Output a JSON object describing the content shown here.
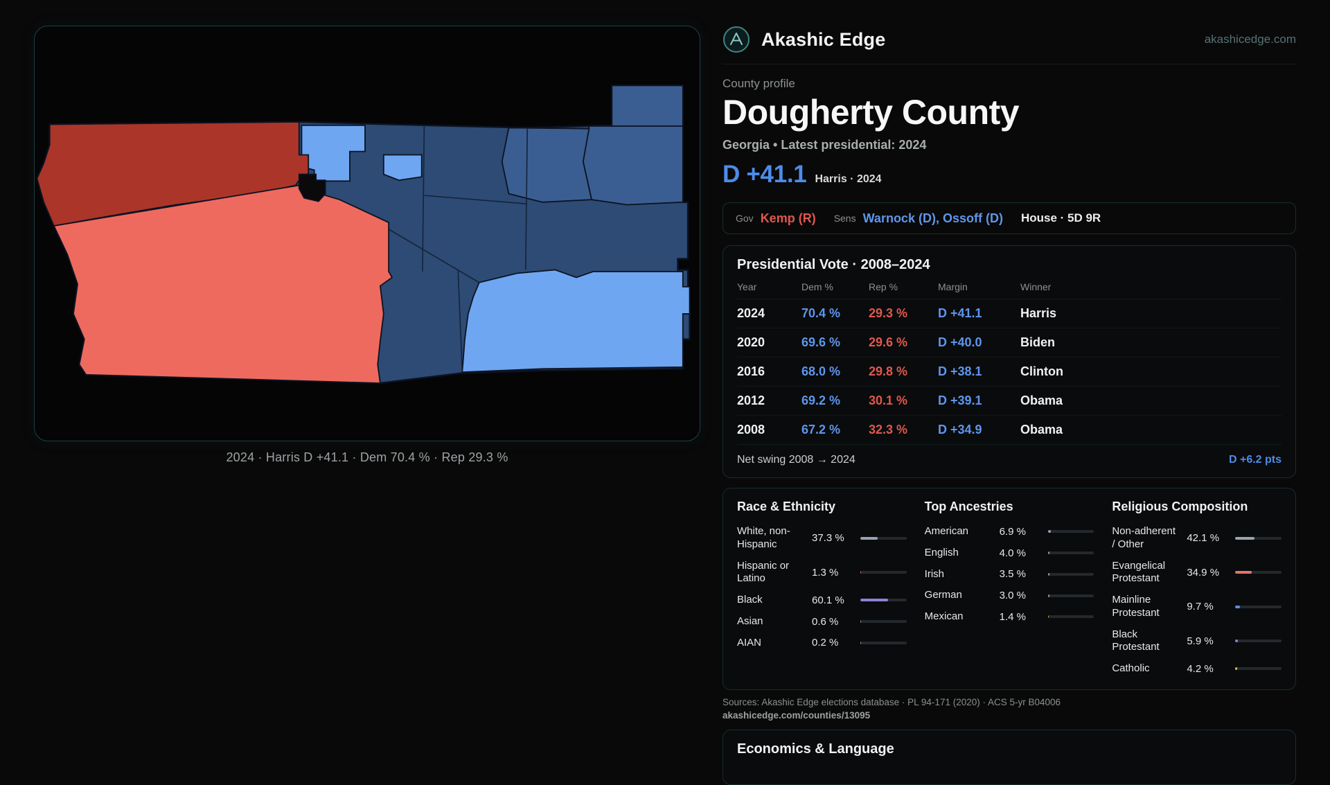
{
  "brand": {
    "name": "Akashic Edge",
    "domain": "akashicedge.com"
  },
  "colors": {
    "accent_dem": "#4d8ce9",
    "accent_rep": "#e2564d",
    "panel_border": "#1e4141",
    "text_muted": "#8d9292"
  },
  "map": {
    "caption": "2024 · Harris D +41.1 · Dem 70.4 % · Rep 29.3 %",
    "colors": {
      "rep_dark": "#ac3529",
      "rep_light": "#ef6a5e",
      "dem_dark": "#2d4b74",
      "dem_mid": "#3b5e92",
      "dem_light": "#6fa6f1",
      "empty": "#0a0a0b",
      "border": "#0c1322"
    }
  },
  "profile": {
    "kicker": "County profile",
    "title": "Dougherty County",
    "subtitle": "Georgia • Latest presidential: 2024",
    "margin_big": "D +41.1",
    "margin_note": "Harris · 2024",
    "officials": {
      "gov_label": "Gov",
      "gov": "Kemp (R)",
      "sens_label": "Sens",
      "sens": "Warnock (D), Ossoff (D)",
      "house": "House · 5D 9R"
    }
  },
  "vote_table": {
    "title": "Presidential Vote · 2008–2024",
    "columns": [
      "Year",
      "Dem %",
      "Rep %",
      "Margin",
      "Winner"
    ],
    "rows": [
      {
        "year": "2024",
        "dem": "70.4 %",
        "rep": "29.3 %",
        "margin": "D +41.1",
        "winner": "Harris"
      },
      {
        "year": "2020",
        "dem": "69.6 %",
        "rep": "29.6 %",
        "margin": "D +40.0",
        "winner": "Biden"
      },
      {
        "year": "2016",
        "dem": "68.0 %",
        "rep": "29.8 %",
        "margin": "D +38.1",
        "winner": "Clinton"
      },
      {
        "year": "2012",
        "dem": "69.2 %",
        "rep": "30.1 %",
        "margin": "D +39.1",
        "winner": "Obama"
      },
      {
        "year": "2008",
        "dem": "67.2 %",
        "rep": "32.3 %",
        "margin": "D +34.9",
        "winner": "Obama"
      }
    ],
    "net_swing_label": "Net swing 2008 → 2024",
    "net_swing_value": "D +6.2 pts"
  },
  "demographics": {
    "groups": [
      {
        "id": "race",
        "title": "Race & Ethnicity",
        "rows": [
          {
            "label": "White, non-Hispanic",
            "value": "37.3 %",
            "pct": 37.3,
            "color": "#98a2b4"
          },
          {
            "label": "Hispanic or Latino",
            "value": "1.3 %",
            "pct": 1.3,
            "color": "#d97e6a"
          },
          {
            "label": "Black",
            "value": "60.1 %",
            "pct": 60.1,
            "color": "#8b82d8"
          },
          {
            "label": "Asian",
            "value": "0.6 %",
            "pct": 0.6,
            "color": "#9aa0a8"
          },
          {
            "label": "AIAN",
            "value": "0.2 %",
            "pct": 0.2,
            "color": "#9aa0a8"
          }
        ]
      },
      {
        "id": "ancestries",
        "title": "Top Ancestries",
        "rows": [
          {
            "label": "American",
            "value": "6.9 %",
            "pct": 6.9,
            "color": "#98a2b4"
          },
          {
            "label": "English",
            "value": "4.0 %",
            "pct": 4.0,
            "color": "#98a2b4"
          },
          {
            "label": "Irish",
            "value": "3.5 %",
            "pct": 3.5,
            "color": "#98a2b4"
          },
          {
            "label": "German",
            "value": "3.0 %",
            "pct": 3.0,
            "color": "#98a2b4"
          },
          {
            "label": "Mexican",
            "value": "1.4 %",
            "pct": 1.4,
            "color": "#d8a13a"
          }
        ]
      },
      {
        "id": "religion",
        "title": "Religious Composition",
        "rows": [
          {
            "label": "Non-adherent / Other",
            "value": "42.1 %",
            "pct": 42.1,
            "color": "#9aa3b0"
          },
          {
            "label": "Evangelical Protestant",
            "value": "34.9 %",
            "pct": 34.9,
            "color": "#e0756a"
          },
          {
            "label": "Mainline Protestant",
            "value": "9.7 %",
            "pct": 9.7,
            "color": "#5b8fe0"
          },
          {
            "label": "Black Protestant",
            "value": "5.9 %",
            "pct": 5.9,
            "color": "#8b82d8"
          },
          {
            "label": "Catholic",
            "value": "4.2 %",
            "pct": 4.2,
            "color": "#e3c24a"
          }
        ]
      }
    ]
  },
  "sources": {
    "line1": "Sources: Akashic Edge elections database · PL 94-171 (2020) · ACS 5-yr B04006",
    "line2": "akashicedge.com/counties/13095"
  },
  "economics": {
    "title": "Economics & Language"
  }
}
